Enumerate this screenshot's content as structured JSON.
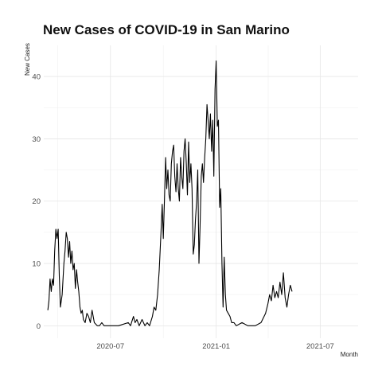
{
  "chart_data": {
    "type": "line",
    "title": "New Cases of COVID-19 in San Marino",
    "xlabel": "Month",
    "ylabel": "New Cases",
    "ylim": [
      -2,
      45
    ],
    "xlim": [
      "2020-03-07",
      "2021-09-05"
    ],
    "x_ticks": [
      "2020-07-01",
      "2021-01-01",
      "2021-07-01"
    ],
    "x_tick_labels": [
      "2020-07",
      "2021-01",
      "2021-07"
    ],
    "y_ticks": [
      0,
      10,
      20,
      30,
      40
    ],
    "grid": true,
    "line_color": "#000000",
    "series": [
      {
        "points": [
          [
            "2020-03-14",
            2.5
          ],
          [
            "2020-03-16",
            4
          ],
          [
            "2020-03-18",
            7.5
          ],
          [
            "2020-03-20",
            5.5
          ],
          [
            "2020-03-22",
            7.5
          ],
          [
            "2020-03-24",
            6.5
          ],
          [
            "2020-03-26",
            12
          ],
          [
            "2020-03-28",
            15.5
          ],
          [
            "2020-03-30",
            14
          ],
          [
            "2020-04-01",
            15.5
          ],
          [
            "2020-04-03",
            8
          ],
          [
            "2020-04-05",
            3
          ],
          [
            "2020-04-08",
            5
          ],
          [
            "2020-04-11",
            10
          ],
          [
            "2020-04-13",
            12
          ],
          [
            "2020-04-15",
            15
          ],
          [
            "2020-04-17",
            14
          ],
          [
            "2020-04-19",
            11
          ],
          [
            "2020-04-21",
            13.5
          ],
          [
            "2020-04-23",
            10
          ],
          [
            "2020-04-25",
            12
          ],
          [
            "2020-04-27",
            9
          ],
          [
            "2020-04-29",
            10
          ],
          [
            "2020-05-01",
            6
          ],
          [
            "2020-05-03",
            9
          ],
          [
            "2020-05-05",
            7
          ],
          [
            "2020-05-07",
            5.5
          ],
          [
            "2020-05-09",
            3
          ],
          [
            "2020-05-11",
            2
          ],
          [
            "2020-05-13",
            2.5
          ],
          [
            "2020-05-15",
            1
          ],
          [
            "2020-05-18",
            0.5
          ],
          [
            "2020-05-21",
            2
          ],
          [
            "2020-05-24",
            1.5
          ],
          [
            "2020-05-27",
            0.5
          ],
          [
            "2020-05-30",
            2.5
          ],
          [
            "2020-06-03",
            0.5
          ],
          [
            "2020-06-08",
            0
          ],
          [
            "2020-06-12",
            0
          ],
          [
            "2020-06-16",
            0.5
          ],
          [
            "2020-06-20",
            0
          ],
          [
            "2020-07-01",
            0
          ],
          [
            "2020-07-15",
            0
          ],
          [
            "2020-08-01",
            0.5
          ],
          [
            "2020-08-05",
            0
          ],
          [
            "2020-08-10",
            1.5
          ],
          [
            "2020-08-13",
            0.5
          ],
          [
            "2020-08-16",
            1
          ],
          [
            "2020-08-20",
            0
          ],
          [
            "2020-08-25",
            1
          ],
          [
            "2020-08-30",
            0
          ],
          [
            "2020-09-03",
            0.5
          ],
          [
            "2020-09-07",
            0
          ],
          [
            "2020-09-12",
            1.5
          ],
          [
            "2020-09-15",
            3
          ],
          [
            "2020-09-18",
            2.5
          ],
          [
            "2020-09-21",
            5
          ],
          [
            "2020-09-24",
            9
          ],
          [
            "2020-09-27",
            15
          ],
          [
            "2020-09-29",
            19.5
          ],
          [
            "2020-10-01",
            14
          ],
          [
            "2020-10-03",
            20
          ],
          [
            "2020-10-05",
            27
          ],
          [
            "2020-10-07",
            22
          ],
          [
            "2020-10-09",
            25
          ],
          [
            "2020-10-11",
            21
          ],
          [
            "2020-10-13",
            20
          ],
          [
            "2020-10-15",
            26
          ],
          [
            "2020-10-17",
            28
          ],
          [
            "2020-10-19",
            29
          ],
          [
            "2020-10-21",
            24
          ],
          [
            "2020-10-23",
            21.5
          ],
          [
            "2020-10-25",
            26
          ],
          [
            "2020-10-27",
            22
          ],
          [
            "2020-10-29",
            20
          ],
          [
            "2020-10-31",
            27
          ],
          [
            "2020-11-02",
            24
          ],
          [
            "2020-11-04",
            22
          ],
          [
            "2020-11-06",
            28
          ],
          [
            "2020-11-08",
            30
          ],
          [
            "2020-11-10",
            26
          ],
          [
            "2020-11-12",
            21
          ],
          [
            "2020-11-14",
            29.5
          ],
          [
            "2020-11-16",
            23
          ],
          [
            "2020-11-18",
            26
          ],
          [
            "2020-11-20",
            22
          ],
          [
            "2020-11-22",
            11.5
          ],
          [
            "2020-11-24",
            13
          ],
          [
            "2020-11-26",
            17
          ],
          [
            "2020-11-28",
            20
          ],
          [
            "2020-11-30",
            25
          ],
          [
            "2020-12-02",
            10
          ],
          [
            "2020-12-04",
            16
          ],
          [
            "2020-12-06",
            24
          ],
          [
            "2020-12-08",
            26
          ],
          [
            "2020-12-10",
            23
          ],
          [
            "2020-12-12",
            27
          ],
          [
            "2020-12-14",
            30
          ],
          [
            "2020-12-16",
            35.5
          ],
          [
            "2020-12-18",
            33
          ],
          [
            "2020-12-20",
            30
          ],
          [
            "2020-12-22",
            34
          ],
          [
            "2020-12-24",
            28
          ],
          [
            "2020-12-26",
            33
          ],
          [
            "2020-12-28",
            24
          ],
          [
            "2020-12-30",
            38
          ],
          [
            "2021-01-01",
            42.5
          ],
          [
            "2021-01-03",
            32
          ],
          [
            "2021-01-05",
            33
          ],
          [
            "2021-01-07",
            19
          ],
          [
            "2021-01-09",
            22
          ],
          [
            "2021-01-11",
            10
          ],
          [
            "2021-01-13",
            3
          ],
          [
            "2021-01-15",
            11
          ],
          [
            "2021-01-17",
            5
          ],
          [
            "2021-01-19",
            2.5
          ],
          [
            "2021-01-22",
            2
          ],
          [
            "2021-01-25",
            1.5
          ],
          [
            "2021-01-28",
            0.5
          ],
          [
            "2021-02-01",
            0.5
          ],
          [
            "2021-02-05",
            0
          ],
          [
            "2021-02-15",
            0.5
          ],
          [
            "2021-02-25",
            0
          ],
          [
            "2021-03-10",
            0
          ],
          [
            "2021-03-20",
            0.5
          ],
          [
            "2021-03-28",
            2
          ],
          [
            "2021-04-01",
            3.5
          ],
          [
            "2021-04-04",
            5
          ],
          [
            "2021-04-07",
            4
          ],
          [
            "2021-04-10",
            6.5
          ],
          [
            "2021-04-13",
            4.5
          ],
          [
            "2021-04-16",
            5.5
          ],
          [
            "2021-04-19",
            4.5
          ],
          [
            "2021-04-22",
            7
          ],
          [
            "2021-04-25",
            5
          ],
          [
            "2021-04-28",
            8.5
          ],
          [
            "2021-05-01",
            4.5
          ],
          [
            "2021-05-04",
            3
          ],
          [
            "2021-05-07",
            5
          ],
          [
            "2021-05-10",
            6.5
          ],
          [
            "2021-05-13",
            5.5
          ]
        ]
      }
    ]
  }
}
